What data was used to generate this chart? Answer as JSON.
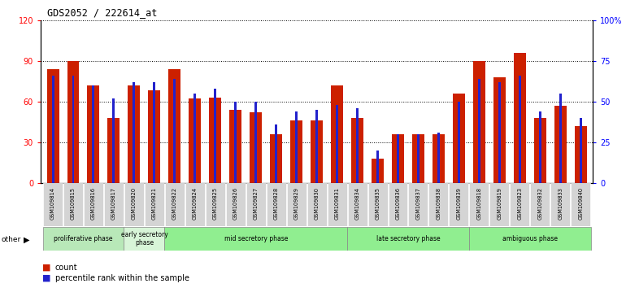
{
  "title": "GDS2052 / 222614_at",
  "samples": [
    "GSM109814",
    "GSM109815",
    "GSM109816",
    "GSM109817",
    "GSM109820",
    "GSM109821",
    "GSM109822",
    "GSM109824",
    "GSM109825",
    "GSM109826",
    "GSM109827",
    "GSM109828",
    "GSM109829",
    "GSM109830",
    "GSM109831",
    "GSM109834",
    "GSM109835",
    "GSM109836",
    "GSM109837",
    "GSM109838",
    "GSM109839",
    "GSM109818",
    "GSM109819",
    "GSM109823",
    "GSM109832",
    "GSM109833",
    "GSM109840"
  ],
  "count_values": [
    84,
    90,
    72,
    48,
    72,
    68,
    84,
    62,
    63,
    54,
    52,
    36,
    46,
    46,
    72,
    48,
    18,
    36,
    36,
    36,
    66,
    90,
    78,
    96,
    48,
    57,
    42
  ],
  "percentile_values": [
    66,
    66,
    60,
    52,
    62,
    62,
    64,
    55,
    58,
    50,
    50,
    36,
    44,
    45,
    48,
    46,
    20,
    30,
    30,
    31,
    50,
    64,
    62,
    66,
    44,
    55,
    40
  ],
  "phases": [
    {
      "name": "proliferative phase",
      "start": 0,
      "end": 4
    },
    {
      "name": "early secretory\nphase",
      "start": 4,
      "end": 6
    },
    {
      "name": "mid secretory phase",
      "start": 6,
      "end": 15
    },
    {
      "name": "late secretory phase",
      "start": 15,
      "end": 21
    },
    {
      "name": "ambiguous phase",
      "start": 21,
      "end": 27
    }
  ],
  "phase_colors": [
    "#b8e8b8",
    "#d8f5d8",
    "#90ee90",
    "#90ee90",
    "#90ee90"
  ],
  "bar_color_red": "#cc2000",
  "bar_color_blue": "#2222cc",
  "ylim_left": [
    0,
    120
  ],
  "ylim_right": [
    0,
    100
  ],
  "yticks_left": [
    0,
    30,
    60,
    90,
    120
  ],
  "yticks_right": [
    0,
    25,
    50,
    75,
    100
  ],
  "ytick_labels_right": [
    "0",
    "25",
    "50",
    "75",
    "100%"
  ]
}
